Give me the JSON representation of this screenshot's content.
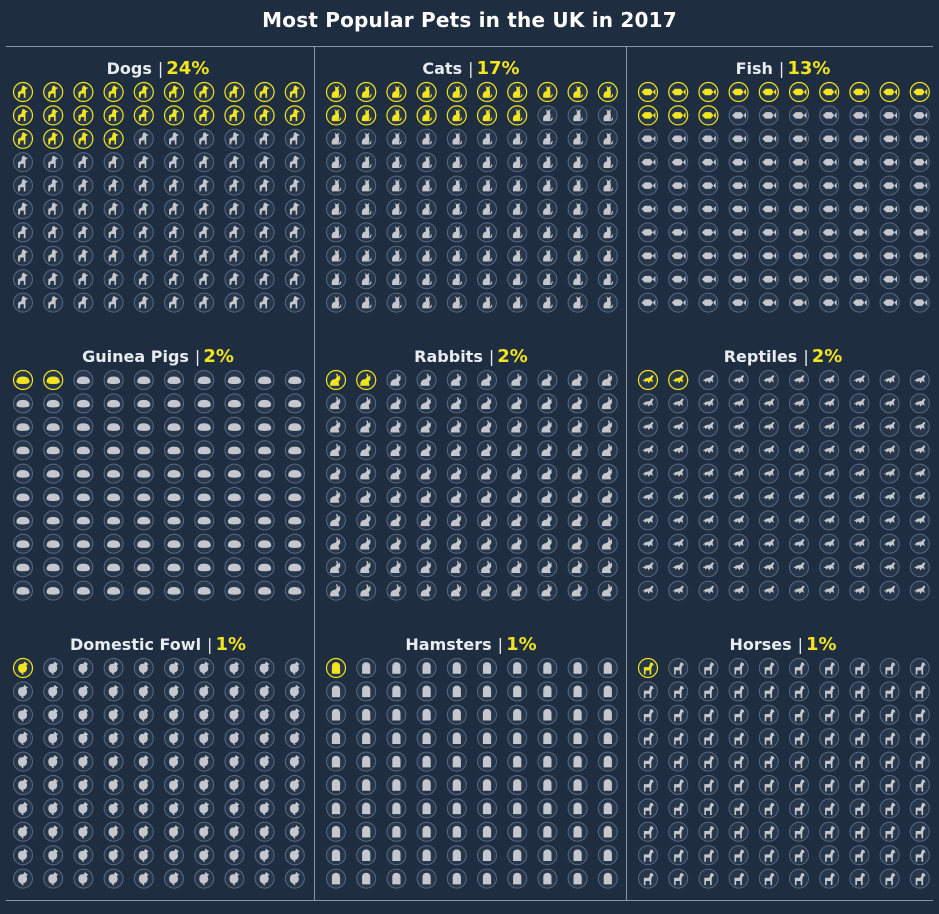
{
  "title": "Most Popular Pets in the UK in 2017",
  "colors": {
    "background": "#1f2d40",
    "highlight": "#f2e41f",
    "muted": "#c4c8ce",
    "ring": "#5a6a80"
  },
  "chart_data": {
    "type": "waffle",
    "title": "Most Popular Pets in the UK in 2017",
    "grid": "10x10 icons per panel",
    "panels": [
      {
        "name": "Dogs",
        "value_label": "24%",
        "value": 24,
        "icon": "dog-icon"
      },
      {
        "name": "Cats",
        "value_label": "17%",
        "value": 17,
        "icon": "cat-icon"
      },
      {
        "name": "Fish",
        "value_label": "13%",
        "value": 13,
        "icon": "fish-icon"
      },
      {
        "name": "Guinea Pigs",
        "value_label": "2%",
        "value": 2,
        "icon": "guinea-pig-icon"
      },
      {
        "name": "Rabbits",
        "value_label": "2%",
        "value": 2,
        "icon": "rabbit-icon"
      },
      {
        "name": "Reptiles",
        "value_label": "2%",
        "value": 2,
        "icon": "reptile-icon"
      },
      {
        "name": "Domestic Fowl",
        "value_label": "1%",
        "value": 1,
        "icon": "chicken-icon"
      },
      {
        "name": "Hamsters",
        "value_label": "1%",
        "value": 1,
        "icon": "hamster-icon"
      },
      {
        "name": "Horses",
        "value_label": "1%",
        "value": 1,
        "icon": "horse-icon"
      }
    ]
  }
}
